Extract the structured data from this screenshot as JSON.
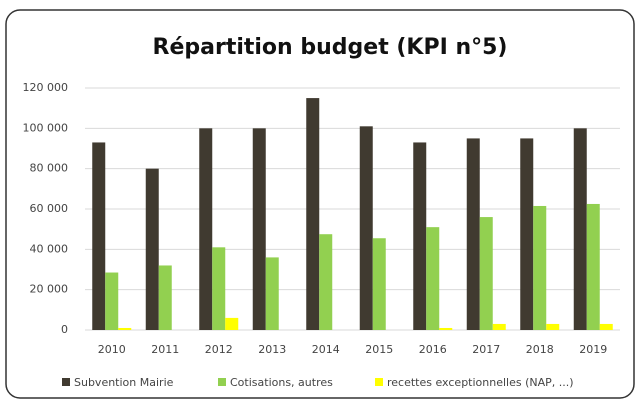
{
  "chart_data": {
    "type": "bar",
    "title": "Répartition budget (KPI n°5)",
    "categories": [
      "2010",
      "2011",
      "2012",
      "2013",
      "2014",
      "2015",
      "2016",
      "2017",
      "2018",
      "2019"
    ],
    "series": [
      {
        "name": "Subvention Mairie",
        "color": "#403a30",
        "values": [
          93000,
          80000,
          100000,
          100000,
          115000,
          101000,
          93000,
          95000,
          95000,
          100000
        ]
      },
      {
        "name": "Cotisations, autres",
        "color": "#92d050",
        "values": [
          28500,
          32000,
          41000,
          36000,
          47500,
          45500,
          51000,
          56000,
          61500,
          62500
        ]
      },
      {
        "name": "recettes exceptionnelles (NAP, ...)",
        "color": "#ffff00",
        "values": [
          1000,
          0,
          6000,
          0,
          0,
          0,
          1000,
          3000,
          3000,
          3000
        ]
      }
    ],
    "ylim": [
      0,
      120000
    ],
    "yticks": [
      0,
      {
        "value": 20000,
        "label": "20 000"
      },
      {
        "value": 40000,
        "label": "40 000"
      },
      {
        "value": 60000,
        "label": "60 000"
      },
      {
        "value": 80000,
        "label": "80 000"
      },
      {
        "value": 100000,
        "label": "100 000"
      },
      {
        "value": 120000,
        "label": "120 000"
      }
    ],
    "grid": true,
    "legend": "bottom"
  }
}
